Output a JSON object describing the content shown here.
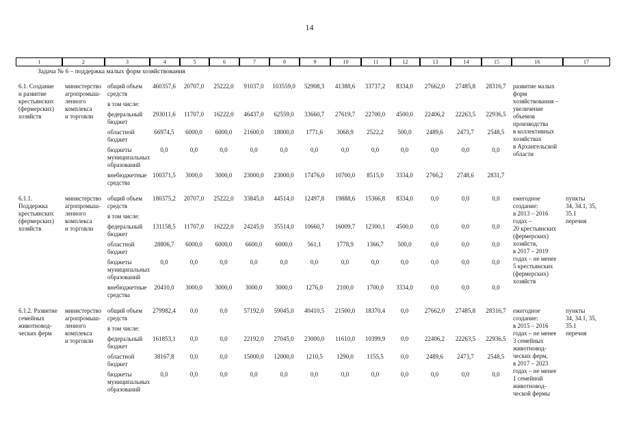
{
  "page": {
    "number": "14"
  },
  "table": {
    "column_numbers": [
      "1",
      "2",
      "3",
      "4",
      "5",
      "6",
      "7",
      "8",
      "9",
      "10",
      "11",
      "12",
      "13",
      "14",
      "15",
      "16",
      "17"
    ],
    "task_caption": "Задача № 6 – поддержка малых форм хозяйствования",
    "rows": [
      {
        "name": "6.1. Создание\nи развитие\nкрестьянских\n(фермерских)\nхозяйств",
        "executor": "министерство\nагропромыш-\nленного\nкомплекса\nи торговли",
        "lines": [
          {
            "label": "общий объем\nсредств",
            "values": [
              "460357,6",
              "20707,0",
              "25222,0",
              "91037,0",
              "103559,0",
              "52908,3",
              "41388,6",
              "33737,2",
              "8334,0",
              "27662,0",
              "27485,8",
              "28316,7"
            ]
          },
          {
            "label": "в том числе:",
            "values": []
          },
          {
            "label": "федеральный\nбюджет",
            "values": [
              "293011,6",
              "11707,0",
              "16222,0",
              "46437,0",
              "62559,0",
              "33660,7",
              "27619,7",
              "22700,0",
              "4500,0",
              "22406,2",
              "22263,5",
              "22936,5"
            ]
          },
          {
            "label": "областной\nбюджет",
            "values": [
              "66974,5",
              "6000,0",
              "6000,0",
              "21600,0",
              "18000,0",
              "1771,6",
              "3068,9",
              "2522,2",
              "500,0",
              "2489,6",
              "2473,7",
              "2548,5"
            ]
          },
          {
            "label": "бюджеты\nмуниципальных\nобразований",
            "values": [
              "0,0",
              "0,0",
              "0,0",
              "0,0",
              "0,0",
              "0,0",
              "0,0",
              "0,0",
              "0,0",
              "0,0",
              "0,0",
              "0,0"
            ]
          },
          {
            "label": "внебюджетные\nсредства",
            "values": [
              "100371,5",
              "3000,0",
              "3000,0",
              "23000,0",
              "23000,0",
              "17476,0",
              "10700,0",
              "8515,0",
              "3334,0",
              "2766,2",
              "2748,6",
              "2831,7"
            ]
          }
        ],
        "result": "развитие малых\nформ\nхозяйствования –\nувеличение\nобъемов\nпроизводства\nв коллективных\nхозяйствах\nв Архангельской\nобласти",
        "reference": ""
      },
      {
        "name": "6.1.1. Поддержка\nкрестьянских\n(фермерских)\nхозяйств",
        "executor": "министерство\nагропромыш-\nленного\nкомплекса\nи торговли",
        "lines": [
          {
            "label": "общий объем\nсредств",
            "values": [
              "180375,2",
              "20707,0",
              "25222,0",
              "33845,0",
              "44514,0",
              "12497,8",
              "19888,6",
              "15366,8",
              "8334,0",
              "0,0",
              "0,0",
              "0,0"
            ]
          },
          {
            "label": "в том числе:",
            "values": []
          },
          {
            "label": "федеральный\nбюджет",
            "values": [
              "131158,5",
              "11707,0",
              "16222,0",
              "24245,0",
              "35514,0",
              "10660,7",
              "16009,7",
              "12300,1",
              "4500,0",
              "0,0",
              "0,0",
              "0,0"
            ]
          },
          {
            "label": "областной\nбюджет",
            "values": [
              "28806,7",
              "6000,0",
              "6000,0",
              "6600,0",
              "6000,0",
              "561,1",
              "1778,9",
              "1366,7",
              "500,0",
              "0,0",
              "0,0",
              "0,0"
            ]
          },
          {
            "label": "бюджеты\nмуниципальных\nобразований",
            "values": [
              "0,0",
              "0,0",
              "0,0",
              "0,0",
              "0,0",
              "0,0",
              "0,0",
              "0,0",
              "0,0",
              "0,0",
              "0,0",
              "0,0"
            ]
          },
          {
            "label": "внебюджетные\nсредства",
            "values": [
              "20410,0",
              "3000,0",
              "3000,0",
              "3000,0",
              "3000,0",
              "1276,0",
              "2100,0",
              "1700,0",
              "3334,0",
              "0,0",
              "0,0",
              "0,0"
            ]
          }
        ],
        "result": "ежегодное\nсоздание:\nв 2013 – 2016\nгодах –\n20 крестьянских\n(фермерских)\nхозяйств,\nв 2017 – 2019\nгодах – не менее\n5 крестьянских\n(фермерских)\nхозяйств",
        "reference": "пункты\n34, 34.1, 35,\n35.1\nперечня"
      },
      {
        "name": "6.1.2. Развитие\nсемейных\nживотновод-\nческих ферм",
        "executor": "министерство\nагропромыш-\nленного\nкомплекса\nи торговли",
        "lines": [
          {
            "label": "общий объем\nсредств",
            "values": [
              "279982,4",
              "0,0",
              "0,0",
              "57192,0",
              "59045,0",
              "40410,5",
              "21500,0",
              "18370,4",
              "0,0",
              "27662,0",
              "27485,8",
              "28316,7"
            ]
          },
          {
            "label": "в том числе:",
            "values": []
          },
          {
            "label": "федеральный\nбюджет",
            "values": [
              "161853,1",
              "0,0",
              "0,0",
              "22192,0",
              "27045,0",
              "23000,0",
              "11610,0",
              "10399,9",
              "0,0",
              "22406,2",
              "22263,5",
              "22936,5"
            ]
          },
          {
            "label": "областной\nбюджет",
            "values": [
              "38167,8",
              "0,0",
              "0,0",
              "15000,0",
              "12000,0",
              "1210,5",
              "1290,0",
              "1155,5",
              "0,0",
              "2489,6",
              "2473,7",
              "2548,5"
            ]
          },
          {
            "label": "бюджеты\nмуниципальных\nобразований",
            "values": [
              "0,0",
              "0,0",
              "0,0",
              "0,0",
              "0,0",
              "0,0",
              "0,0",
              "0,0",
              "0,0",
              "0,0",
              "0,0",
              "0,0"
            ]
          }
        ],
        "result": "ежегодное\nсоздание:\nв 2015 – 2016\nгодах – не менее\n3 семейных\nживотновод-\nческих ферм,\nв 2017 – 2023\nгодах – не менее\n1 семейной\nживотновод-\nческой фермы",
        "reference": "пункты\n34, 34.1, 35,\n35.1\nперечня"
      }
    ]
  }
}
